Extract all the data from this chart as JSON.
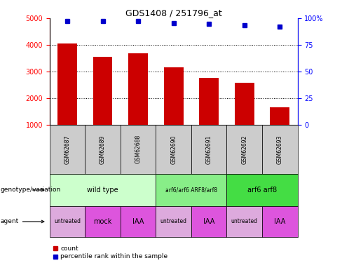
{
  "title": "GDS1408 / 251796_at",
  "samples": [
    "GSM62687",
    "GSM62689",
    "GSM62688",
    "GSM62690",
    "GSM62691",
    "GSM62692",
    "GSM62693"
  ],
  "bar_values": [
    4050,
    3550,
    3680,
    3150,
    2780,
    2580,
    1650
  ],
  "percentile_values": [
    97.5,
    97.5,
    97.5,
    95.5,
    95.0,
    93.5,
    92.0
  ],
  "bar_color": "#cc0000",
  "dot_color": "#0000cc",
  "ylim_left": [
    1000,
    5000
  ],
  "ylim_right": [
    0,
    100
  ],
  "yticks_left": [
    1000,
    2000,
    3000,
    4000,
    5000
  ],
  "yticks_right": [
    0,
    25,
    50,
    75,
    100
  ],
  "genotype_groups": [
    {
      "label": "wild type",
      "start": 0,
      "end": 3,
      "color": "#ccffcc"
    },
    {
      "label": "arf6/arf6 ARF8/arf8",
      "start": 3,
      "end": 5,
      "color": "#88ee88"
    },
    {
      "label": "arf6 arf8",
      "start": 5,
      "end": 7,
      "color": "#44dd44"
    }
  ],
  "agent_groups": [
    {
      "label": "untreated",
      "start": 0,
      "end": 1,
      "color": "#ddaadd"
    },
    {
      "label": "mock",
      "start": 1,
      "end": 2,
      "color": "#dd55dd"
    },
    {
      "label": "IAA",
      "start": 2,
      "end": 3,
      "color": "#dd55dd"
    },
    {
      "label": "untreated",
      "start": 3,
      "end": 4,
      "color": "#ddaadd"
    },
    {
      "label": "IAA",
      "start": 4,
      "end": 5,
      "color": "#dd55dd"
    },
    {
      "label": "untreated",
      "start": 5,
      "end": 6,
      "color": "#ddaadd"
    },
    {
      "label": "IAA",
      "start": 6,
      "end": 7,
      "color": "#dd55dd"
    }
  ],
  "genotype_label": "genotype/variation",
  "agent_label": "agent",
  "legend_count": "count",
  "legend_percentile": "percentile rank within the sample",
  "sample_box_color": "#cccccc"
}
